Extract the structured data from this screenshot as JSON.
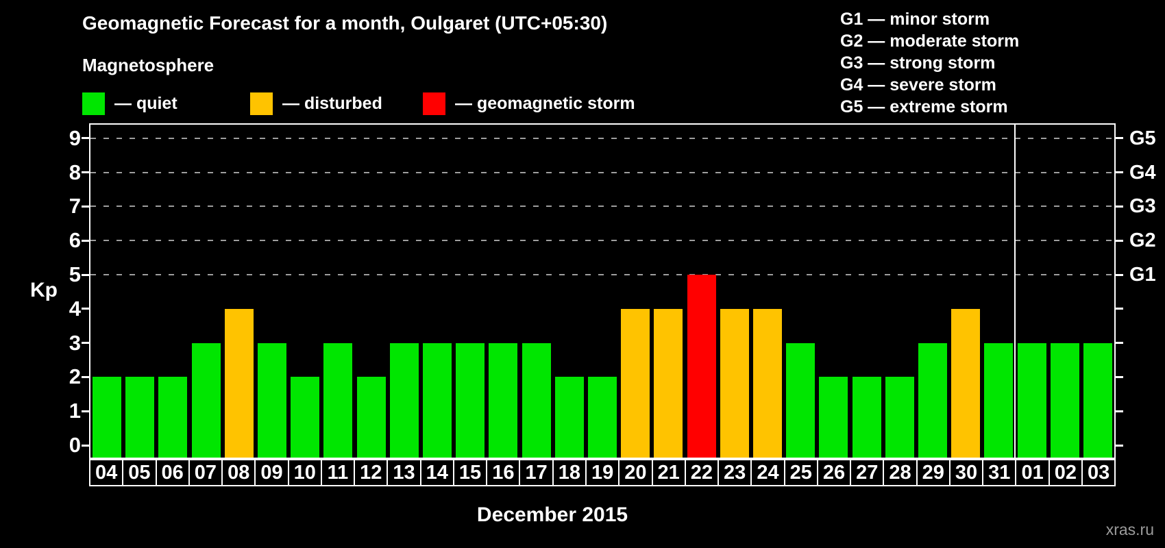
{
  "title": "Geomagnetic Forecast for a month, Oulgaret (UTC+05:30)",
  "subtitle": "Magnetosphere",
  "magnetosphere_legend": [
    {
      "name": "quiet",
      "label": "— quiet",
      "color": "#00e600"
    },
    {
      "name": "disturbed",
      "label": "— disturbed",
      "color": "#ffc300"
    },
    {
      "name": "storm",
      "label": "— geomagnetic storm",
      "color": "#ff0000"
    }
  ],
  "storm_scale_legend": [
    {
      "label": "G1 — minor storm"
    },
    {
      "label": "G2 — moderate storm"
    },
    {
      "label": "G3 — strong storm"
    },
    {
      "label": "G4 — severe storm"
    },
    {
      "label": "G5 — extreme storm"
    }
  ],
  "watermark": "xras.ru",
  "chart_data": {
    "type": "bar",
    "title": "Geomagnetic Forecast for a month, Oulgaret (UTC+05:30)",
    "xlabel": "December 2015",
    "ylabel": "Kp",
    "ylim": [
      0,
      9
    ],
    "y_ticks": [
      0,
      1,
      2,
      3,
      4,
      5,
      6,
      7,
      8,
      9
    ],
    "gridlines_at_kp": [
      5,
      6,
      7,
      8,
      9
    ],
    "right_axis_labels": [
      {
        "label": "G1",
        "kp": 5
      },
      {
        "label": "G2",
        "kp": 6
      },
      {
        "label": "G3",
        "kp": 7
      },
      {
        "label": "G4",
        "kp": 8
      },
      {
        "label": "G5",
        "kp": 9
      }
    ],
    "grid": "dashed horizontal lines at G storm levels only",
    "legend_position": "top-left and top-right",
    "categories": [
      "04",
      "05",
      "06",
      "07",
      "08",
      "09",
      "10",
      "11",
      "12",
      "13",
      "14",
      "15",
      "16",
      "17",
      "18",
      "19",
      "20",
      "21",
      "22",
      "23",
      "24",
      "25",
      "26",
      "27",
      "28",
      "29",
      "30",
      "31",
      "01",
      "02",
      "03"
    ],
    "values": [
      2,
      2,
      2,
      3,
      4,
      3,
      2,
      3,
      2,
      3,
      3,
      3,
      3,
      3,
      2,
      2,
      4,
      4,
      5,
      4,
      4,
      3,
      2,
      2,
      2,
      3,
      4,
      3,
      3,
      3,
      3
    ],
    "states": [
      "quiet",
      "quiet",
      "quiet",
      "quiet",
      "disturbed",
      "quiet",
      "quiet",
      "quiet",
      "quiet",
      "quiet",
      "quiet",
      "quiet",
      "quiet",
      "quiet",
      "quiet",
      "quiet",
      "disturbed",
      "disturbed",
      "storm",
      "disturbed",
      "disturbed",
      "quiet",
      "quiet",
      "quiet",
      "quiet",
      "quiet",
      "disturbed",
      "quiet",
      "quiet",
      "quiet",
      "quiet"
    ],
    "state_colors": {
      "quiet": "#00e600",
      "disturbed": "#ffc300",
      "storm": "#ff0000"
    },
    "month_separator_after_index": 27
  }
}
